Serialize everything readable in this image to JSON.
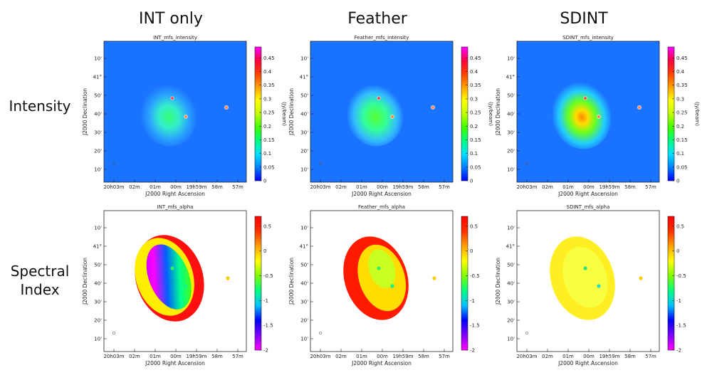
{
  "columns": [
    "INT only",
    "Feather",
    "SDINT"
  ],
  "rows": [
    "Intensity",
    "Spectral\nIndex"
  ],
  "row_labels": {
    "intensity": "Intensity",
    "spectral_line1": "Spectral",
    "spectral_line2": "Index"
  },
  "axes": {
    "xlabel": "J2000 Right Ascension",
    "ylabel": "J2000 Declination",
    "ra_ticks": [
      "20h03m",
      "02m",
      "01m",
      "00m",
      "19h59m",
      "58m",
      "57m"
    ],
    "dec_ticks": [
      "10'",
      "20'",
      "30'",
      "40'",
      "50'",
      "41°",
      "10'"
    ]
  },
  "chart_data": [
    {
      "type": "heatmap",
      "title": "INT_mfs_intensity",
      "row": "Intensity",
      "column": "INT only",
      "colorbar": {
        "label": "(Jy/beam)",
        "ticks": [
          0,
          0.05,
          0.1,
          0.15,
          0.2,
          0.25,
          0.3,
          0.35,
          0.4,
          0.45
        ],
        "range": [
          0,
          0.49
        ]
      }
    },
    {
      "type": "heatmap",
      "title": "Feather_mfs_intensity",
      "row": "Intensity",
      "column": "Feather",
      "colorbar": {
        "label": "(Jy/beam)",
        "ticks": [
          0,
          0.05,
          0.1,
          0.15,
          0.2,
          0.25,
          0.3,
          0.35,
          0.4,
          0.45
        ],
        "range": [
          0,
          0.49
        ]
      }
    },
    {
      "type": "heatmap",
      "title": "SDINT_mfs_intensity",
      "row": "Intensity",
      "column": "SDINT",
      "colorbar": {
        "label": "(Jy/beam)",
        "ticks": [
          0,
          0.05,
          0.1,
          0.15,
          0.2,
          0.25,
          0.3,
          0.35,
          0.4,
          0.45
        ],
        "range": [
          0,
          0.49
        ]
      }
    },
    {
      "type": "heatmap",
      "title": "INT_mfs_alpha",
      "row": "Spectral Index",
      "column": "INT only",
      "colorbar": {
        "label": "",
        "ticks": [
          0.5,
          0,
          -0.5,
          -1,
          -1.5,
          -2
        ],
        "range": [
          -2,
          0.7
        ]
      }
    },
    {
      "type": "heatmap",
      "title": "Feather_mfs_alpha",
      "row": "Spectral Index",
      "column": "Feather",
      "colorbar": {
        "label": "",
        "ticks": [
          0.5,
          0,
          -0.5,
          -1,
          -1.5,
          -2
        ],
        "range": [
          -2,
          0.7
        ]
      }
    },
    {
      "type": "heatmap",
      "title": "SDINT_mfs_alpha",
      "row": "Spectral Index",
      "column": "SDINT",
      "colorbar": {
        "label": "",
        "ticks": [
          0.5,
          0,
          -0.5,
          -1,
          -1.5,
          -2
        ],
        "range": [
          -2,
          0.7
        ]
      }
    }
  ],
  "colors": {
    "intensity_bg": "#1a73ff",
    "cmap": [
      "#0000ff",
      "#0080ff",
      "#00e0ff",
      "#00ff80",
      "#40ff00",
      "#c0ff00",
      "#ffff00",
      "#ffa000",
      "#ff4000",
      "#ff0040",
      "#ff00ff"
    ],
    "cmap_alpha": [
      "#ff00ff",
      "#8000ff",
      "#0000ff",
      "#00c0ff",
      "#00ff80",
      "#80ff00",
      "#ffff00",
      "#ffa000",
      "#ff3000",
      "#ff0000"
    ]
  }
}
